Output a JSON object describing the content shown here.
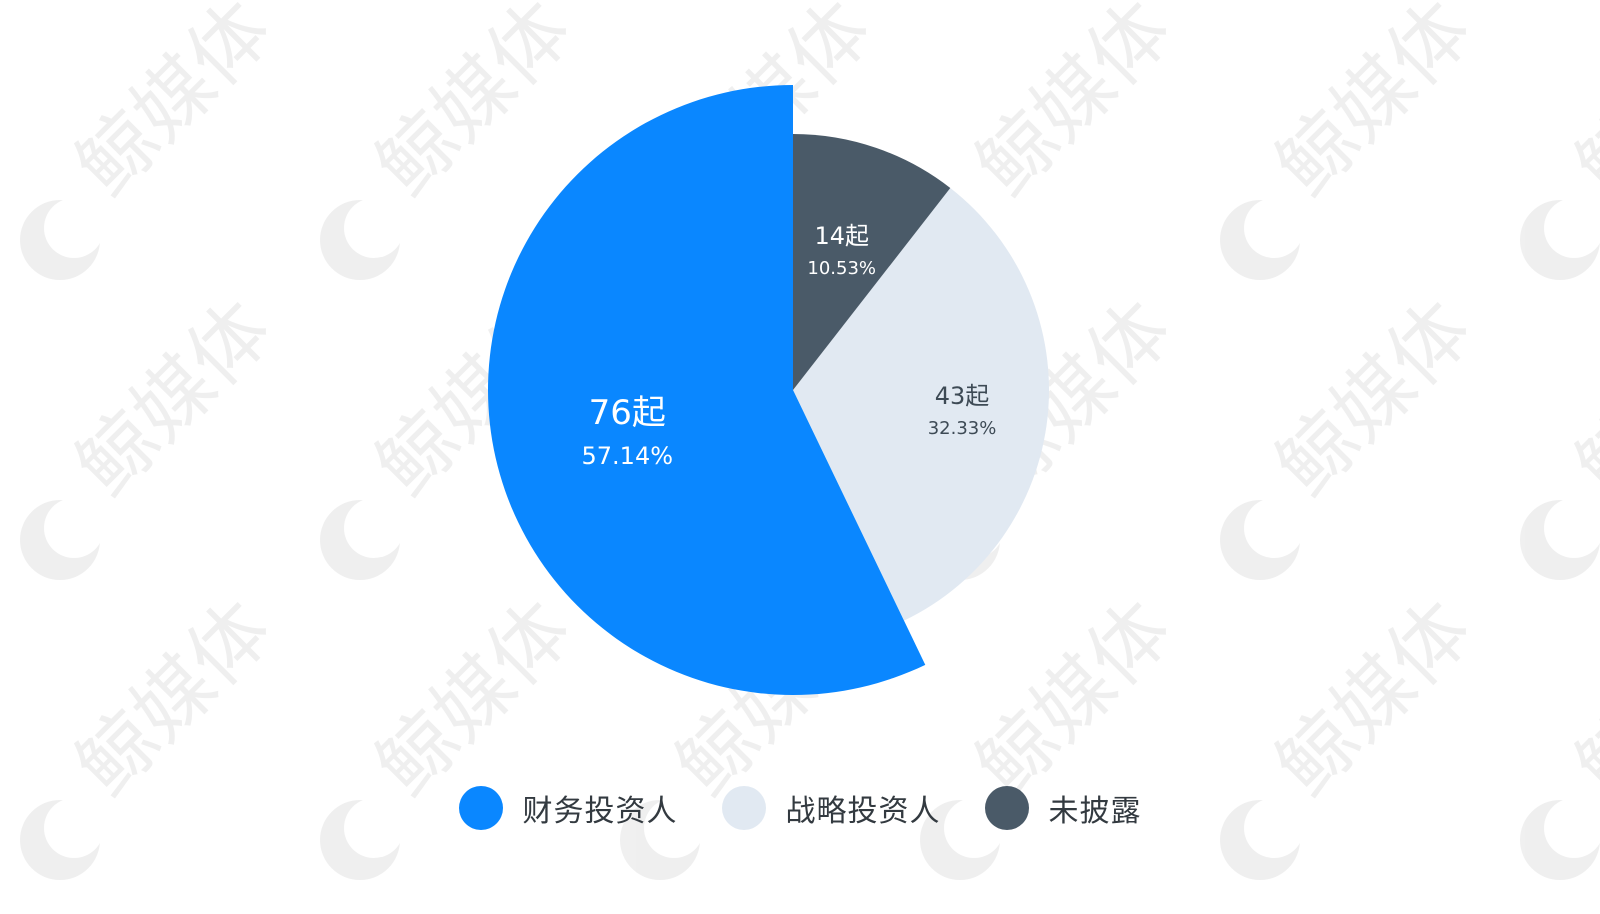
{
  "chart_data": {
    "type": "pie",
    "title": "",
    "slices": [
      {
        "label": "财务投资人",
        "count_text": "76起",
        "percent_text": "57.14%",
        "value": 57.14,
        "color": "#0a87ff",
        "text_color": "#ffffff",
        "exploded": true
      },
      {
        "label": "战略投资人",
        "count_text": "43起",
        "percent_text": "32.33%",
        "value": 32.33,
        "color": "#e1e9f2",
        "text_color": "#3d4a55",
        "exploded": false
      },
      {
        "label": "未披露",
        "count_text": "14起",
        "percent_text": "10.53%",
        "value": 10.53,
        "color": "#4a5a68",
        "text_color": "#ffffff",
        "exploded": false
      }
    ],
    "legend_position": "bottom",
    "start_angle": "top",
    "direction": "counterclockwise"
  },
  "watermark": {
    "text": "鲸媒体"
  }
}
